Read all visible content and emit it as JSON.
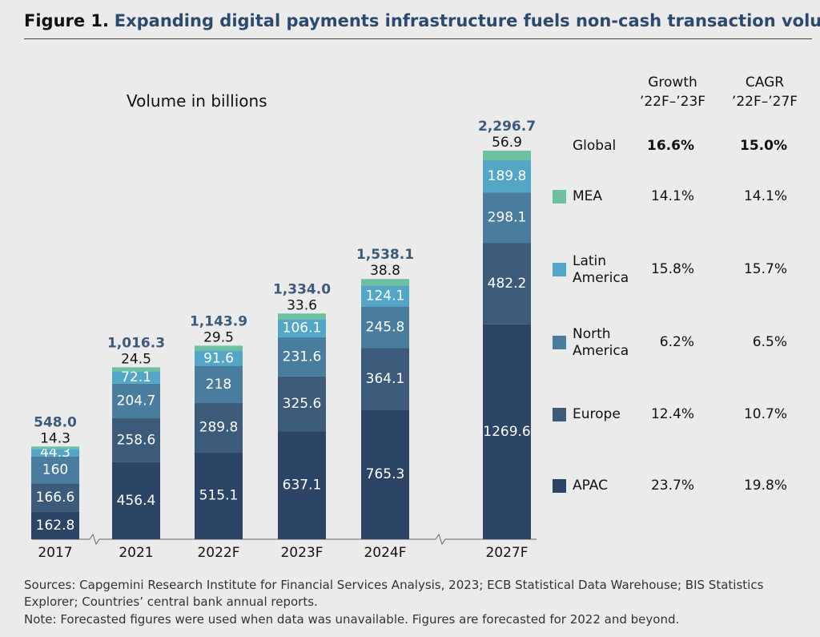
{
  "chart_data": {
    "type": "stacked_bar",
    "title_prefix": "Figure 1.",
    "title": "Expanding digital payments infrastructure fuels non-cash transaction volume growth",
    "subtitle": "Volume in billions",
    "categories": [
      "2017",
      "2021",
      "2022F",
      "2023F",
      "2024F",
      "2027F"
    ],
    "series": [
      {
        "name": "APAC",
        "color": "#2c4466",
        "values": [
          162.8,
          456.4,
          515.1,
          637.1,
          765.3,
          1269.6
        ],
        "growth": "23.7%",
        "cagr": "19.8%"
      },
      {
        "name": "Europe",
        "color": "#3c5a7a",
        "values": [
          166.6,
          258.6,
          289.8,
          325.6,
          364.1,
          482.2
        ],
        "growth": "12.4%",
        "cagr": "10.7%"
      },
      {
        "name": "North America",
        "color": "#4a7d9d",
        "values": [
          160,
          204.7,
          218,
          231.6,
          245.8,
          298.1
        ],
        "growth": "6.2%",
        "cagr": "6.5%"
      },
      {
        "name": "Latin America",
        "color": "#54a6c6",
        "values": [
          44.3,
          72.1,
          91.6,
          106.1,
          124.1,
          189.8
        ],
        "growth": "15.8%",
        "cagr": "15.7%"
      },
      {
        "name": "MEA",
        "color": "#6dc0a0",
        "values": [
          14.3,
          24.5,
          29.5,
          33.6,
          38.8,
          56.9
        ],
        "growth": "14.1%",
        "cagr": "14.1%"
      }
    ],
    "totals": {
      "values": [
        548.0,
        1016.3,
        1143.9,
        1334.0,
        1538.1,
        2296.7
      ],
      "value_labels": [
        "548.0",
        "1,016.3",
        "1,143.9",
        "1,334.0",
        "1,538.1",
        "2,296.7"
      ]
    },
    "table": {
      "growth_header": [
        "Growth",
        "’22F–’23F"
      ],
      "cagr_header": [
        "CAGR",
        "’22F–’27F"
      ],
      "global": {
        "label": "Global",
        "growth": "16.6%",
        "cagr": "15.0%"
      }
    },
    "sources": "Sources: Capgemini Research Institute for Financial Services Analysis, 2023; ECB Statistical Data Warehouse; BIS Statistics Explorer; Countries’ central bank annual reports.",
    "note": "Note: Forecasted figures were used when data was unavailable. Figures are forecasted for 2022 and beyond."
  }
}
